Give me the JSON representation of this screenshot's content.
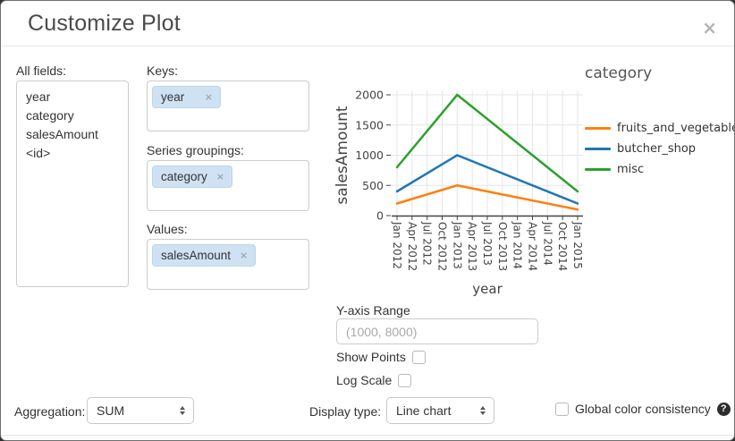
{
  "dialog": {
    "title": "Customize Plot",
    "close_glyph": "×"
  },
  "fields_panel": {
    "label": "All fields:",
    "items": [
      "year",
      "category",
      "salesAmount",
      "<id>"
    ]
  },
  "dropzones": [
    {
      "label": "Keys:",
      "tags": [
        {
          "text": "year",
          "remove_glyph": "×"
        }
      ]
    },
    {
      "label": "Series groupings:",
      "tags": [
        {
          "text": "category",
          "remove_glyph": "×"
        }
      ]
    },
    {
      "label": "Values:",
      "tags": [
        {
          "text": "salesAmount",
          "remove_glyph": "×"
        }
      ]
    }
  ],
  "chart_data": {
    "type": "line",
    "title": "",
    "xlabel": "year",
    "ylabel": "salesAmount",
    "ylim": [
      0,
      2000
    ],
    "yticks": [
      0,
      500,
      1000,
      1500,
      2000
    ],
    "xticks": [
      "Jan 2012",
      "Apr 2012",
      "Jul 2012",
      "Oct 2012",
      "Jan 2013",
      "Apr 2013",
      "Jul 2013",
      "Oct 2013",
      "Jan 2014",
      "Apr 2014",
      "Jul 2014",
      "Oct 2014",
      "Jan 2015"
    ],
    "x": [
      "Jan 2012",
      "Jan 2013",
      "Jan 2015"
    ],
    "series": [
      {
        "name": "fruits_and_vegetable",
        "color": "#ff7f0e",
        "values": [
          200,
          500,
          100
        ]
      },
      {
        "name": "butcher_shop",
        "color": "#1f77b4",
        "values": [
          400,
          1000,
          200
        ]
      },
      {
        "name": "misc",
        "color": "#2ca02c",
        "values": [
          800,
          2000,
          400
        ]
      }
    ],
    "legend_title": "category",
    "legend_position": "right",
    "grid": true
  },
  "options": {
    "y_axis_range_label": "Y-axis Range",
    "y_axis_range_placeholder": "(1000, 8000)",
    "y_axis_range_value": "",
    "show_points_label": "Show Points",
    "show_points_checked": false,
    "log_scale_label": "Log Scale",
    "log_scale_checked": false
  },
  "footer_controls": {
    "aggregation_label": "Aggregation:",
    "aggregation_value": "SUM",
    "display_type_label": "Display type:",
    "display_type_value": "Line chart",
    "global_color_label": "Global color consistency",
    "global_color_checked": false,
    "help_glyph": "?"
  },
  "colors": {
    "tag_background": "#cfe2f3",
    "grid_line": "#e5e5e5",
    "axis_text": "#444444"
  }
}
